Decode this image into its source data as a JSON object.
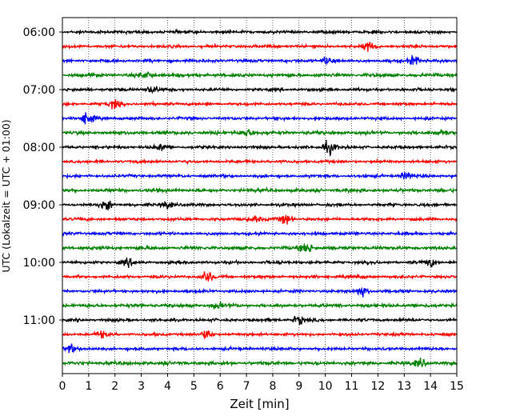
{
  "chart_data": {
    "type": "line",
    "title": "",
    "xlabel": "Zeit  [min]",
    "ylabel": "UTC (Lokalzeit = UTC + 01:00)",
    "xlim": [
      0,
      15
    ],
    "x_ticks": [
      0,
      1,
      2,
      3,
      4,
      5,
      6,
      7,
      8,
      9,
      10,
      11,
      12,
      13,
      14,
      15
    ],
    "y_ticks": [
      "06:00",
      "07:00",
      "08:00",
      "09:00",
      "10:00",
      "11:00"
    ],
    "grid": "vertical dotted",
    "row_interval_minutes": 15,
    "first_row": "06:00",
    "row_count": 24,
    "colors": [
      "#000000",
      "#ff0000",
      "#0000ff",
      "#008000"
    ],
    "events": [
      {
        "row": 1,
        "x": 11.7,
        "amp": 1.0
      },
      {
        "row": 2,
        "x": 10.1,
        "amp": 0.9
      },
      {
        "row": 2,
        "x": 13.4,
        "amp": 1.0
      },
      {
        "row": 3,
        "x": 3.2,
        "amp": 0.8
      },
      {
        "row": 4,
        "x": 3.4,
        "amp": 0.9
      },
      {
        "row": 5,
        "x": 2.0,
        "amp": 0.9
      },
      {
        "row": 6,
        "x": 0.95,
        "amp": 1.2
      },
      {
        "row": 7,
        "x": 7.0,
        "amp": 0.9
      },
      {
        "row": 7,
        "x": 14.4,
        "amp": 0.9
      },
      {
        "row": 8,
        "x": 10.15,
        "amp": 1.4
      },
      {
        "row": 8,
        "x": 3.8,
        "amp": 0.6
      },
      {
        "row": 10,
        "x": 13.1,
        "amp": 0.7
      },
      {
        "row": 12,
        "x": 1.7,
        "amp": 1.0
      },
      {
        "row": 12,
        "x": 4.0,
        "amp": 0.8
      },
      {
        "row": 13,
        "x": 8.5,
        "amp": 1.0
      },
      {
        "row": 13,
        "x": 7.3,
        "amp": 0.7
      },
      {
        "row": 15,
        "x": 9.3,
        "amp": 1.1
      },
      {
        "row": 16,
        "x": 2.5,
        "amp": 0.7
      },
      {
        "row": 16,
        "x": 14.0,
        "amp": 0.8
      },
      {
        "row": 17,
        "x": 5.5,
        "amp": 1.1
      },
      {
        "row": 18,
        "x": 11.4,
        "amp": 1.1
      },
      {
        "row": 19,
        "x": 5.9,
        "amp": 0.6
      },
      {
        "row": 20,
        "x": 9.0,
        "amp": 0.9
      },
      {
        "row": 21,
        "x": 1.5,
        "amp": 0.7
      },
      {
        "row": 21,
        "x": 5.5,
        "amp": 0.9
      },
      {
        "row": 22,
        "x": 0.3,
        "amp": 0.8
      },
      {
        "row": 23,
        "x": 13.6,
        "amp": 0.8
      }
    ]
  }
}
